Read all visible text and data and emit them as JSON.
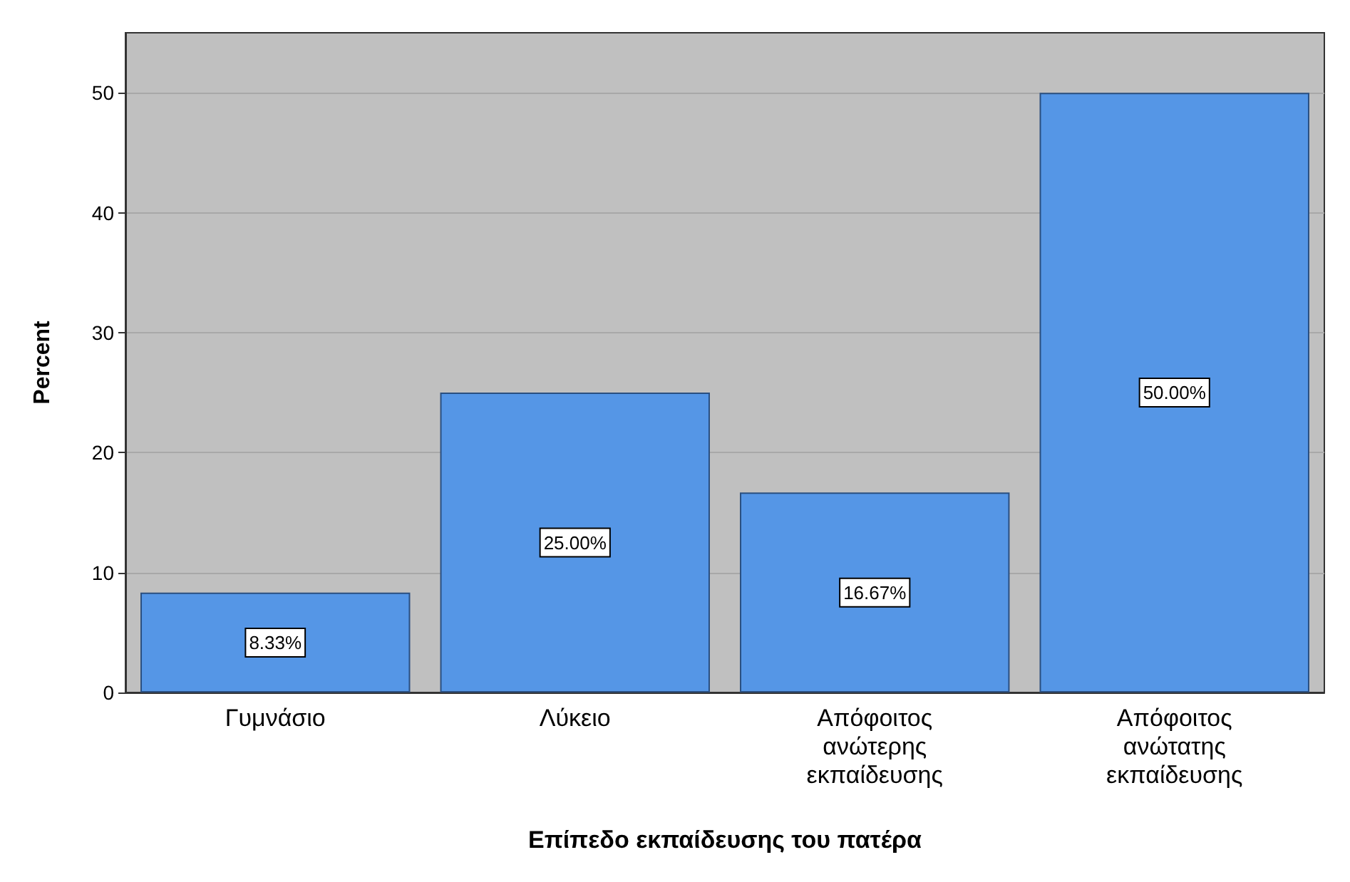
{
  "chart_data": {
    "type": "bar",
    "xlabel": "Επίπεδο εκπαίδευσης του πατέρα",
    "ylabel": "Percent",
    "categories": [
      "Γυμνάσιο",
      "Λύκειο",
      "Απόφοιτος\nανώτερης\nεκπαίδευσης",
      "Απόφοιτος\nανώτατης\nεκπαίδευσης"
    ],
    "values": [
      8.33,
      25,
      16.67,
      50
    ],
    "value_labels": [
      "8.33%",
      "25.00%",
      "16.67%",
      "50.00%"
    ],
    "color": "#5596e6",
    "ylim": [
      0,
      55
    ],
    "yticks": [
      0,
      10,
      20,
      30,
      40,
      50
    ],
    "grid": "y"
  }
}
